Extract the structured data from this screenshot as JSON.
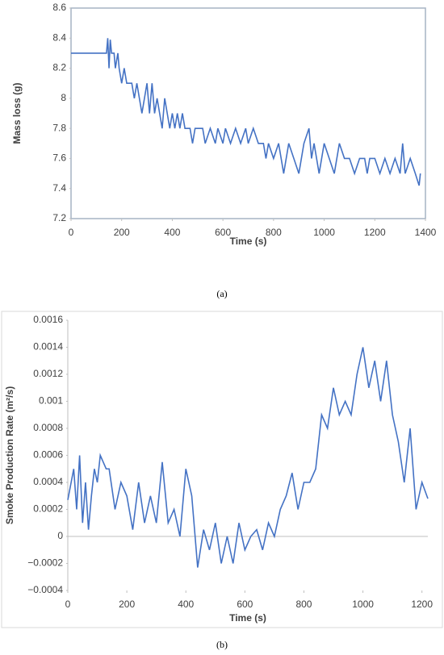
{
  "chart_data": [
    {
      "type": "line",
      "x_label": "Time (s)",
      "y_label": "Mass loss (g)",
      "caption": "(a)",
      "color": "#4472c4",
      "xlim": [
        0,
        1400
      ],
      "xticks": [
        0,
        200,
        400,
        600,
        800,
        1000,
        1200,
        1400
      ],
      "ylim": [
        7.2,
        8.6
      ],
      "yticks": [
        7.2,
        7.4,
        7.6,
        7.8,
        8,
        8.2,
        8.4,
        8.6
      ],
      "x": [
        0,
        140,
        145,
        150,
        155,
        160,
        170,
        175,
        185,
        190,
        200,
        210,
        220,
        240,
        250,
        260,
        270,
        280,
        290,
        300,
        310,
        320,
        330,
        340,
        350,
        360,
        370,
        380,
        390,
        400,
        410,
        420,
        430,
        440,
        450,
        470,
        480,
        490,
        520,
        530,
        550,
        570,
        580,
        600,
        610,
        630,
        650,
        670,
        690,
        700,
        720,
        740,
        760,
        770,
        780,
        800,
        820,
        840,
        860,
        880,
        900,
        920,
        940,
        950,
        960,
        980,
        1000,
        1020,
        1040,
        1060,
        1080,
        1100,
        1120,
        1140,
        1160,
        1170,
        1180,
        1200,
        1220,
        1240,
        1260,
        1280,
        1300,
        1310,
        1320,
        1340,
        1360,
        1375,
        1380
      ],
      "values": [
        8.3,
        8.3,
        8.4,
        8.2,
        8.39,
        8.3,
        8.3,
        8.2,
        8.3,
        8.2,
        8.1,
        8.2,
        8.1,
        8.1,
        8.0,
        8.1,
        8.0,
        7.9,
        8.0,
        8.1,
        7.9,
        8.1,
        7.9,
        8.0,
        7.9,
        7.8,
        8.0,
        7.9,
        7.8,
        7.9,
        7.8,
        7.9,
        7.8,
        7.9,
        7.8,
        7.8,
        7.7,
        7.8,
        7.8,
        7.7,
        7.8,
        7.7,
        7.8,
        7.7,
        7.8,
        7.7,
        7.8,
        7.7,
        7.8,
        7.7,
        7.8,
        7.7,
        7.7,
        7.6,
        7.7,
        7.6,
        7.7,
        7.5,
        7.7,
        7.6,
        7.5,
        7.7,
        7.8,
        7.6,
        7.7,
        7.5,
        7.7,
        7.6,
        7.5,
        7.7,
        7.6,
        7.6,
        7.5,
        7.6,
        7.6,
        7.5,
        7.6,
        7.6,
        7.5,
        7.6,
        7.5,
        7.6,
        7.5,
        7.7,
        7.5,
        7.6,
        7.5,
        7.42,
        7.5
      ]
    },
    {
      "type": "line",
      "x_label": "Time (s)",
      "y_label": "Smoke Production Rate (m²/s)",
      "caption": "(b)",
      "color": "#4472c4",
      "xlim": [
        0,
        1220
      ],
      "xticks": [
        0,
        200,
        400,
        600,
        800,
        1000,
        1200
      ],
      "ylim": [
        -0.0004,
        0.0016
      ],
      "yticks": [
        {
          "value": -0.0004,
          "label": "−0.0004"
        },
        {
          "value": -0.0002,
          "label": "−0.0002"
        },
        0,
        0.0002,
        0.0004,
        0.0006,
        0.0008,
        0.001,
        0.0012,
        0.0014,
        0.0016
      ],
      "x": [
        0,
        20,
        30,
        40,
        50,
        60,
        70,
        80,
        90,
        100,
        110,
        130,
        140,
        160,
        180,
        200,
        220,
        240,
        260,
        280,
        300,
        320,
        340,
        360,
        380,
        400,
        420,
        440,
        460,
        480,
        500,
        520,
        540,
        560,
        580,
        600,
        620,
        640,
        660,
        680,
        700,
        720,
        740,
        760,
        780,
        800,
        820,
        840,
        860,
        880,
        900,
        920,
        940,
        960,
        980,
        1000,
        1020,
        1040,
        1060,
        1080,
        1100,
        1120,
        1140,
        1160,
        1180,
        1200,
        1220
      ],
      "values": [
        0.00027,
        0.0005,
        0.0002,
        0.0006,
        0.0001,
        0.0004,
        5e-05,
        0.0003,
        0.0005,
        0.0004,
        0.0006,
        0.0005,
        0.0005,
        0.0002,
        0.0004,
        0.0003,
        5e-05,
        0.0004,
        0.0001,
        0.0003,
        0.0001,
        0.00055,
        0.0001,
        0.0002,
        0,
        0.0005,
        0.0003,
        -0.00023,
        5e-05,
        -0.0001,
        0.0001,
        -0.0002,
        0,
        -0.0002,
        0.0001,
        -0.0001,
        0,
        5e-05,
        -0.0001,
        0.0001,
        0,
        0.0002,
        0.0003,
        0.00047,
        0.0002,
        0.0004,
        0.0004,
        0.0005,
        0.0009,
        0.0008,
        0.0011,
        0.0009,
        0.001,
        0.0009,
        0.0012,
        0.0014,
        0.0011,
        0.0013,
        0.001,
        0.0013,
        0.0009,
        0.0007,
        0.0004,
        0.0008,
        0.0002,
        0.0004,
        0.00028
      ]
    }
  ]
}
